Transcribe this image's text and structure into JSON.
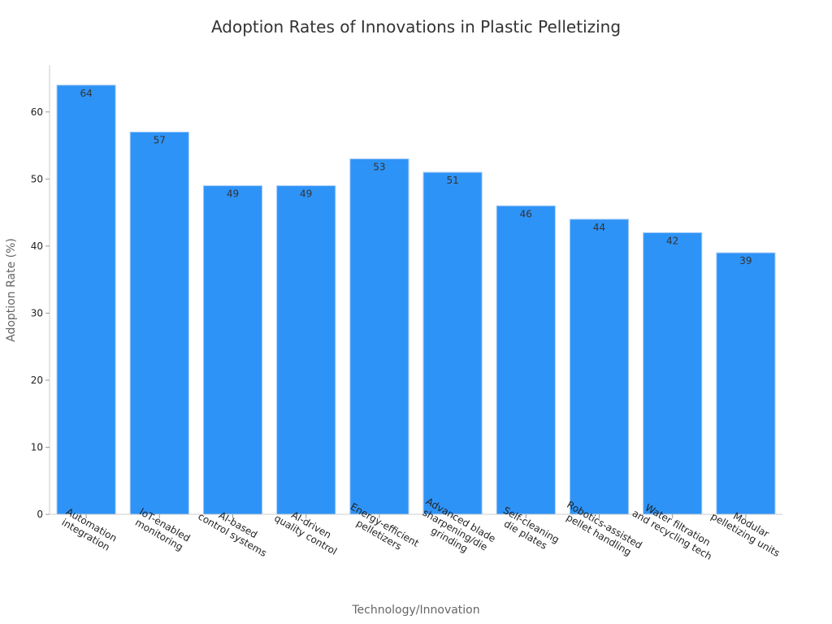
{
  "chart_data": {
    "type": "bar",
    "title": "Adoption Rates of Innovations in Plastic Pelletizing",
    "xlabel": "Technology/Innovation",
    "ylabel": "Adoption Rate (%)",
    "categories": [
      [
        "Automation",
        "integration"
      ],
      [
        "IoT-enabled",
        "monitoring"
      ],
      [
        "AI-based",
        "control systems"
      ],
      [
        "AI-driven",
        "quality control"
      ],
      [
        "Energy-efficient",
        "pelletizers"
      ],
      [
        "Advanced blade",
        "sharpening/die",
        "grinding"
      ],
      [
        "Self-cleaning",
        "die plates"
      ],
      [
        "Robotics-assisted",
        "pellet handling"
      ],
      [
        "Water filtration",
        "and recycling tech"
      ],
      [
        "Modular",
        "pelletizing units"
      ]
    ],
    "values": [
      64,
      57,
      49,
      49,
      53,
      51,
      46,
      44,
      42,
      39
    ],
    "ylim": [
      0,
      67
    ],
    "yticks": [
      0,
      10,
      20,
      30,
      40,
      50,
      60
    ],
    "grid": false,
    "legend": "none",
    "bar_color": "#2e93f7",
    "bar_edge_color": "#a9cdf5"
  }
}
